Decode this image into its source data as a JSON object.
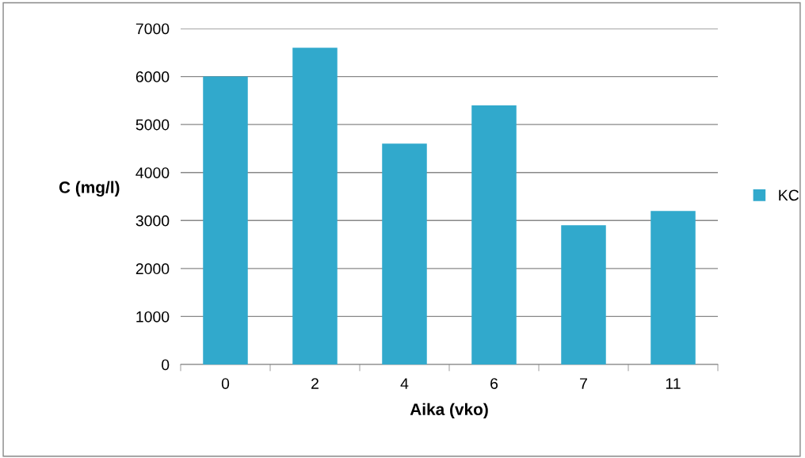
{
  "chart_data": {
    "type": "bar",
    "xlabel": "Aika (vko)",
    "ylabel": "C (mg/l)",
    "categories": [
      "0",
      "2",
      "4",
      "6",
      "7",
      "11"
    ],
    "series": [
      {
        "name": "KC",
        "color": "#31a9cc",
        "values": [
          6000,
          6600,
          4600,
          5400,
          2900,
          3200
        ]
      }
    ],
    "ylim": [
      0,
      7000
    ],
    "yticks": [
      0,
      1000,
      2000,
      3000,
      4000,
      5000,
      6000,
      7000
    ],
    "grid": "y",
    "legend": "right"
  }
}
